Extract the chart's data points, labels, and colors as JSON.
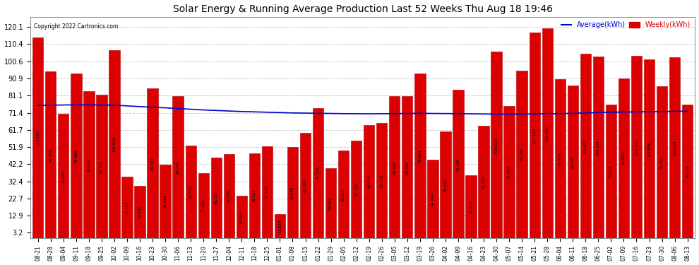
{
  "title": "Solar Energy & Running Average Production Last 52 Weeks Thu Aug 18 19:46",
  "copyright": "Copyright 2022 Cartronics.com",
  "legend_avg": "Average(kWh)",
  "legend_weekly": "Weekly(kWh)",
  "bar_color": "#dd0000",
  "avg_line_color": "#0000cc",
  "bar_edge_color": "#aa0000",
  "background_color": "#ffffff",
  "plot_bg_color": "#ffffff",
  "grid_color": "#cccccc",
  "categories": [
    "08-21",
    "08-28",
    "09-04",
    "09-11",
    "09-18",
    "09-25",
    "10-02",
    "10-09",
    "10-16",
    "10-23",
    "10-30",
    "11-06",
    "11-13",
    "11-20",
    "11-27",
    "12-04",
    "12-11",
    "12-18",
    "12-25",
    "01-01",
    "01-08",
    "01-15",
    "01-22",
    "01-29",
    "02-05",
    "02-12",
    "02-19",
    "02-26",
    "03-05",
    "03-12",
    "03-19",
    "03-26",
    "04-02",
    "04-09",
    "04-16",
    "04-23",
    "04-30",
    "05-07",
    "05-14",
    "05-21",
    "05-28",
    "06-04",
    "06-11",
    "06-18",
    "06-25",
    "07-02",
    "07-09",
    "07-16",
    "07-23",
    "07-30",
    "08-06",
    "08-13"
  ],
  "values": [
    114.28,
    94.704,
    70.664,
    93.816,
    83.576,
    81.712,
    106.836,
    35.124,
    29.892,
    85.204,
    42.016,
    80.776,
    52.76,
    37.12,
    46.132,
    48.024,
    24.084,
    48.524,
    52.552,
    13.828,
    52.028,
    60.184,
    74.188,
    39.992,
    49.912,
    55.72,
    64.424,
    65.476,
    80.9,
    80.996,
    93.664,
    44.864,
    60.92,
    84.396,
    35.92,
    64.08,
    106.024,
    75.404,
    95.148,
    117.1,
    119.46,
    90.464,
    86.88,
    105.056,
    103.224,
    76.128,
    90.912,
    103.76,
    101.656,
    86.56,
    103.024,
    76.128
  ],
  "avg_values": [
    75.5,
    75.7,
    75.8,
    75.9,
    75.85,
    75.8,
    75.7,
    75.3,
    74.9,
    74.5,
    74.2,
    73.8,
    73.4,
    73.0,
    72.7,
    72.4,
    72.1,
    71.9,
    71.7,
    71.5,
    71.3,
    71.2,
    71.1,
    71.0,
    70.9,
    70.85,
    70.8,
    70.85,
    70.9,
    71.0,
    71.1,
    71.0,
    70.95,
    70.9,
    70.8,
    70.7,
    70.65,
    70.6,
    70.7,
    70.75,
    70.8,
    70.9,
    71.1,
    71.3,
    71.5,
    71.7,
    71.8,
    71.9,
    72.0,
    72.1,
    72.2,
    72.3
  ],
  "yticks": [
    3.2,
    12.9,
    22.7,
    32.4,
    42.2,
    51.9,
    61.7,
    71.4,
    81.1,
    90.9,
    100.6,
    110.4,
    120.1
  ],
  "ylim": [
    0,
    126
  ],
  "figsize": [
    9.9,
    3.75
  ],
  "dpi": 100
}
